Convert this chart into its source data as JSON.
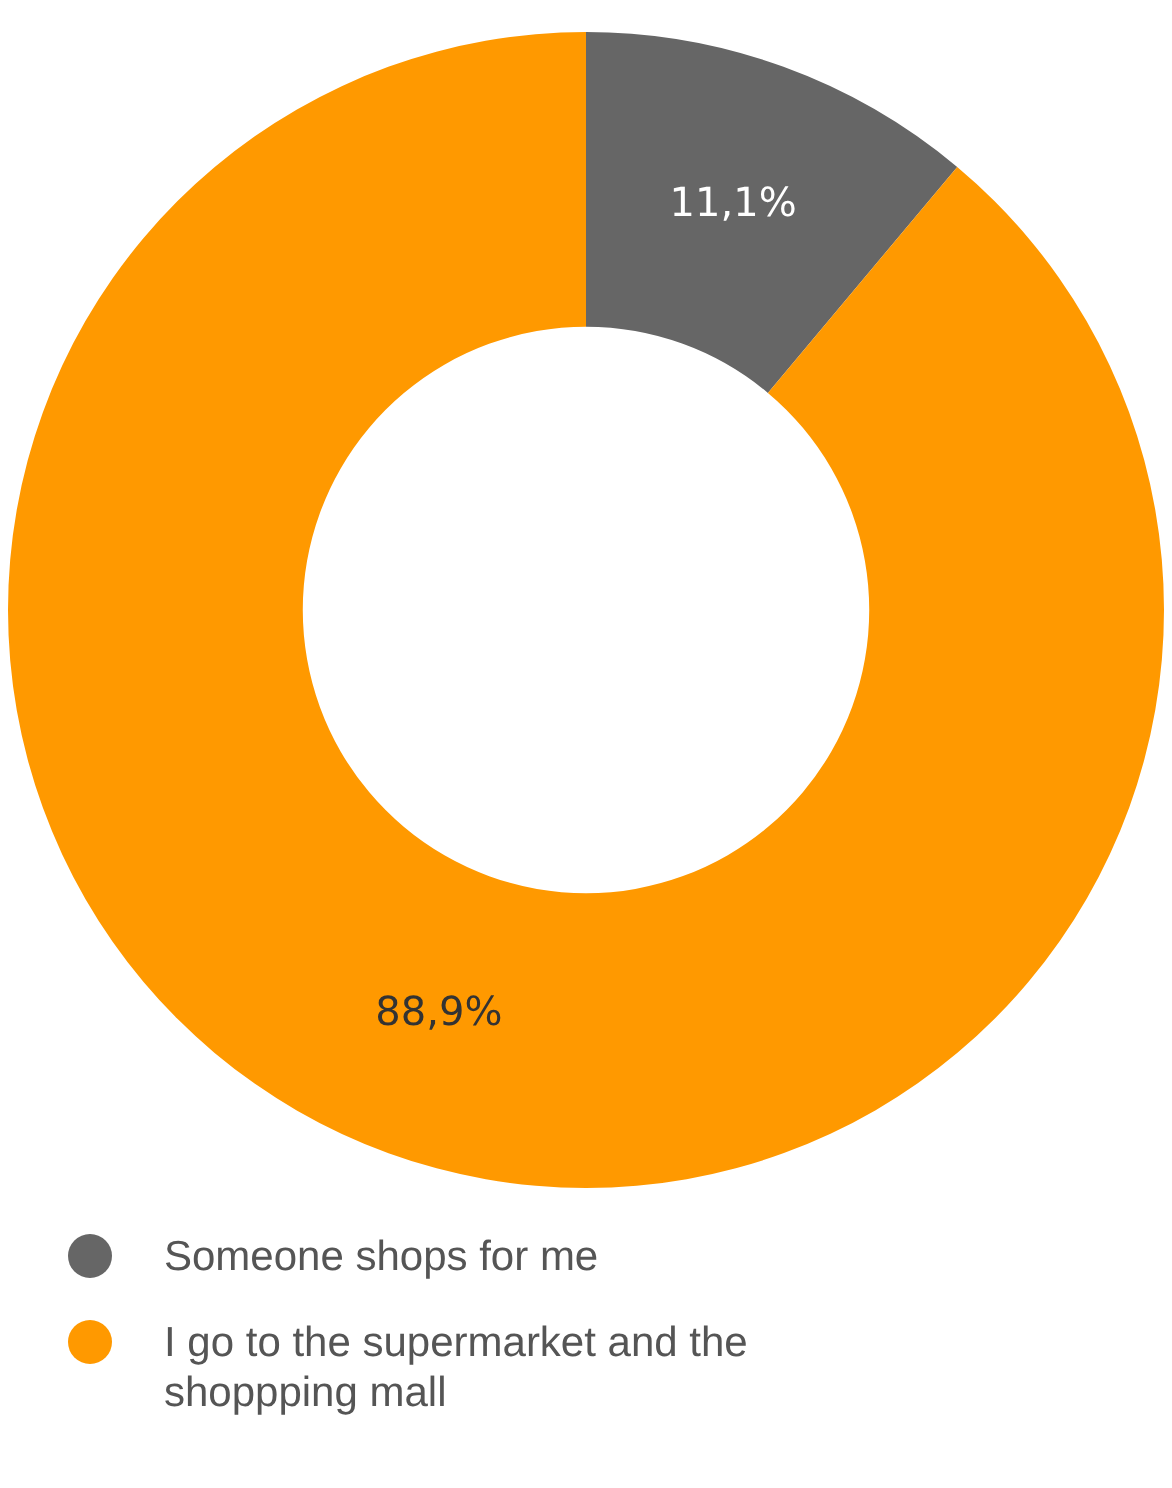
{
  "chart_data": {
    "type": "donut",
    "categories": [
      "Someone shops for me",
      "I go to the supermarket and the shoppping mall"
    ],
    "values": [
      11.1,
      88.9
    ],
    "colors": [
      "#666666",
      "#ff9900"
    ],
    "value_labels": [
      "11,1%",
      "88,9%"
    ],
    "legend": "bottom"
  }
}
